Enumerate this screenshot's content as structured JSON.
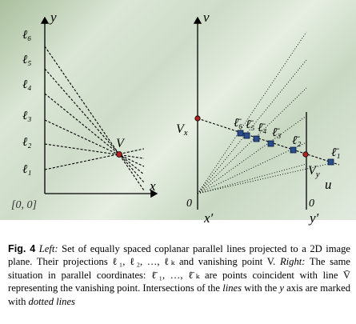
{
  "figure": {
    "left_panel": {
      "y_axis_label": "y",
      "x_axis_label": "x",
      "origin_label": "[0, 0]",
      "vanishing_point_label": "V",
      "line_labels": [
        "ℓ₆",
        "ℓ₅",
        "ℓ₄",
        "ℓ₃",
        "ℓ₂",
        "ℓ₁"
      ]
    },
    "right_panel": {
      "v_axis_label": "v",
      "u_axis_label": "u",
      "zero_label_left": "0",
      "zero_label_right": "0",
      "x_prime_label": "x′",
      "y_prime_label": "y′",
      "vx_label": "Vx",
      "vy_label": "Vy",
      "point_labels": [
        "ℓ̄₆",
        "ℓ̄₅",
        "ℓ̄₄",
        "ℓ̄₃",
        "ℓ̄₂",
        "ℓ̄₁"
      ]
    }
  },
  "caption": {
    "fig_label": "Fig. 4",
    "left_word": "Left:",
    "text1": " Set of equally spaced coplanar parallel lines projected to a 2D image plane. Their projections ℓ₁, ℓ₂, …, ℓₖ and vanishing point V. ",
    "right_word": "Right:",
    "text2": " The same situation in parallel coordinates: ℓ̄₁, …, ℓ̄ₖ are points coincident with line V̄ representing the vanishing point. Intersections of the ",
    "lines_word": "lines",
    "text3": " with the ",
    "y_word": "y",
    "text4": " axis are marked with ",
    "dotted_word": "dotted lines"
  },
  "colors": {
    "marker_blue": "#2a4e8c",
    "marker_red": "#b22222",
    "ink": "#000000"
  }
}
